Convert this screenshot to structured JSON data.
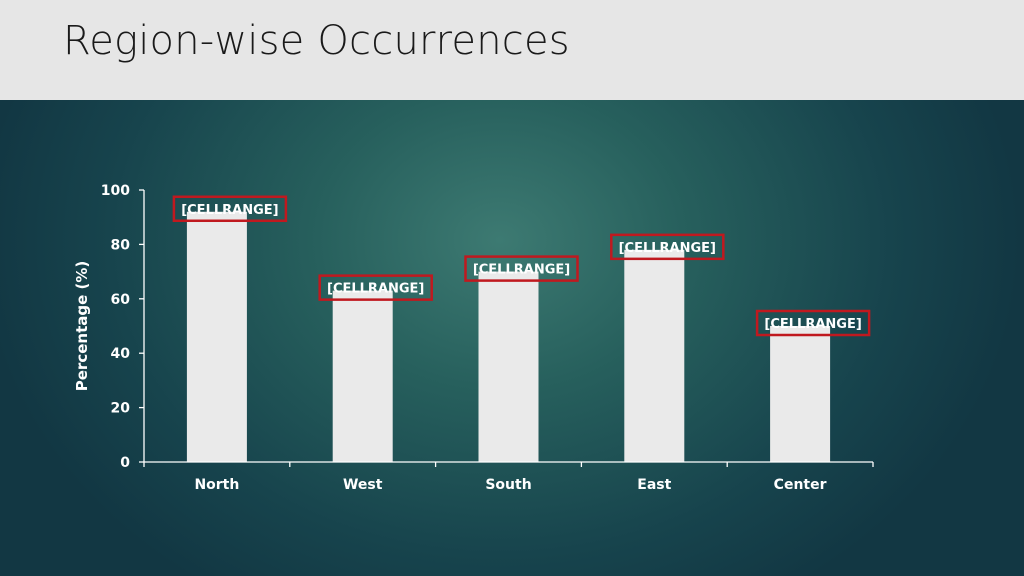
{
  "slide": {
    "title": "Region-wise Occurrences"
  },
  "chart_data": {
    "type": "bar",
    "categories": [
      "North",
      "West",
      "South",
      "East",
      "Center"
    ],
    "values": [
      92,
      63,
      70,
      78,
      50
    ],
    "data_labels": [
      "[CELLRANGE]",
      "[CELLRANGE]",
      "[CELLRANGE]",
      "[CELLRANGE]",
      "[CELLRANGE]"
    ],
    "title": "",
    "xlabel": "",
    "ylabel": "Percentage (%)",
    "ylim": [
      0,
      100
    ],
    "yticks": [
      0,
      20,
      40,
      60,
      80,
      100
    ],
    "grid": false,
    "legend": "none",
    "colors": {
      "bar": "#eaeaea",
      "label_border": "#c0191f",
      "axis": "#ffffff",
      "title_bar": "#e6e6e6",
      "background": "#1e5256"
    }
  }
}
